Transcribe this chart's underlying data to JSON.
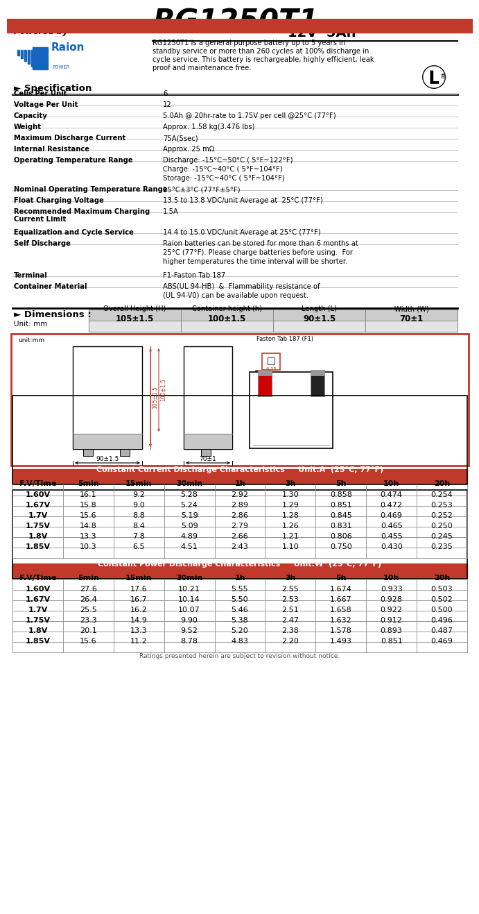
{
  "title_model": "RG1250T1",
  "title_voltage": "12V  5Ah",
  "powered_by": "Powered by",
  "description": "RG1250T1 is a general purpose battery up to 5 years in\nstandby service or more than 260 cycles at 100% discharge in\ncycle service. This battery is rechargeable, highly efficient, leak\nproof and maintenance free.",
  "top_bar_color": "#c0392b",
  "spec_rows": [
    [
      "Cells Per Unit",
      "6"
    ],
    [
      "Voltage Per Unit",
      "12"
    ],
    [
      "Capacity",
      "5.0Ah @ 20hr-rate to 1.75V per cell @25°C (77°F)"
    ],
    [
      "Weight",
      "Approx. 1.58 kg(3.476 lbs)"
    ],
    [
      "Maximum Discharge Current",
      "75A(5sec)"
    ],
    [
      "Internal Resistance",
      "Approx. 25 mΩ"
    ],
    [
      "Operating Temperature Range",
      "Discharge: -15°C~50°C ( 5°F~122°F)\nCharge: -15°C~40°C ( 5°F~104°F)\nStorage: -15°C~40°C ( 5°F~104°F)"
    ],
    [
      "Nominal Operating Temperature Range",
      "25°C±3°C (77°F±5°F)"
    ],
    [
      "Float Charging Voltage",
      "13.5 to 13.8 VDC/unit Average at  25°C (77°F)"
    ],
    [
      "Recommended Maximum Charging\nCurrent Limit",
      "1.5A"
    ],
    [
      "Equalization and Cycle Service",
      "14.4 to 15.0 VDC/unit Average at 25°C (77°F)"
    ],
    [
      "Self Discharge",
      "Raion batteries can be stored for more than 6 months at\n25°C (77°F). Please charge batteries before using.  For\nhigher temperatures the time interval will be shorter."
    ],
    [
      "Terminal",
      "F1-Faston Tab 187"
    ],
    [
      "Container Material",
      "ABS(UL 94-HB)  &  Flammability resistance of\n(UL 94-V0) can be available upon request."
    ]
  ],
  "spec_row_heights": [
    16,
    16,
    16,
    16,
    16,
    16,
    42,
    16,
    16,
    30,
    16,
    46,
    16,
    30
  ],
  "dim_cols": [
    "Overall Height (H)",
    "Container height (h)",
    "Length (L)",
    "Width (W)"
  ],
  "dim_vals": [
    "105±1.5",
    "100±1.5",
    "90±1.5",
    "70±1"
  ],
  "cc_header": "Constant Current Discharge Characteristics     Unit:A  (25°C, 77°F)",
  "cc_cols": [
    "F.V/Time",
    "5min",
    "15min",
    "30min",
    "1h",
    "3h",
    "5h",
    "10h",
    "20h"
  ],
  "cc_data": [
    [
      "1.60V",
      "16.1",
      "9.2",
      "5.28",
      "2.92",
      "1.30",
      "0.858",
      "0.474",
      "0.254"
    ],
    [
      "1.67V",
      "15.8",
      "9.0",
      "5.24",
      "2.89",
      "1.29",
      "0.851",
      "0.472",
      "0.253"
    ],
    [
      "1.7V",
      "15.6",
      "8.8",
      "5.19",
      "2.86",
      "1.28",
      "0.845",
      "0.469",
      "0.252"
    ],
    [
      "1.75V",
      "14.8",
      "8.4",
      "5.09",
      "2.79",
      "1.26",
      "0.831",
      "0.465",
      "0.250"
    ],
    [
      "1.8V",
      "13.3",
      "7.8",
      "4.89",
      "2.66",
      "1.21",
      "0.806",
      "0.455",
      "0.245"
    ],
    [
      "1.85V",
      "10.3",
      "6.5",
      "4.51",
      "2.43",
      "1.10",
      "0.750",
      "0.430",
      "0.235"
    ]
  ],
  "cp_header": "Constant Power Discharge Characteristics     Unit:W  (25°C, 77°F)",
  "cp_cols": [
    "F.V/Time",
    "5min",
    "15min",
    "30min",
    "1h",
    "3h",
    "5h",
    "10h",
    "20h"
  ],
  "cp_data": [
    [
      "1.60V",
      "27.6",
      "17.6",
      "10.21",
      "5.55",
      "2.55",
      "1.674",
      "0.933",
      "0.503"
    ],
    [
      "1.67V",
      "26.4",
      "16.7",
      "10.14",
      "5.50",
      "2.53",
      "1.667",
      "0.928",
      "0.502"
    ],
    [
      "1.7V",
      "25.5",
      "16.2",
      "10.07",
      "5.46",
      "2.51",
      "1.658",
      "0.922",
      "0.500"
    ],
    [
      "1.75V",
      "23.3",
      "14.9",
      "9.90",
      "5.38",
      "2.47",
      "1.632",
      "0.912",
      "0.496"
    ],
    [
      "1.8V",
      "20.1",
      "13.3",
      "9.52",
      "5.20",
      "2.38",
      "1.578",
      "0.893",
      "0.487"
    ],
    [
      "1.85V",
      "15.6",
      "11.2",
      "8.78",
      "4.83",
      "2.20",
      "1.493",
      "0.851",
      "0.469"
    ]
  ],
  "footer": "Ratings presented herein are subject to revision without notice.",
  "bg_color": "#ffffff",
  "table_header_bg": "#c0392b",
  "table_header_fg": "#ffffff"
}
